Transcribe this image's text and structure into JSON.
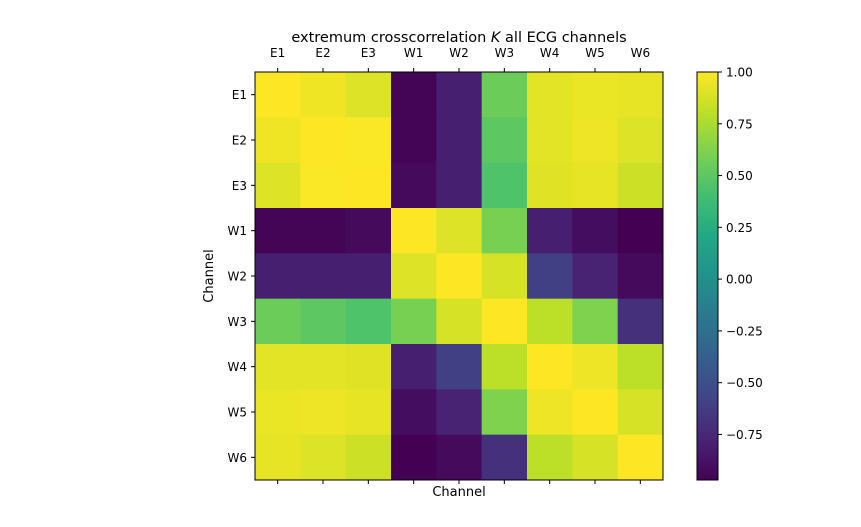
{
  "chart_data": {
    "type": "heatmap",
    "title": "extremum crosscorrelation K all ECG channels",
    "title_parts": {
      "before": "extremum crosscorrelation ",
      "italic": "K",
      "after": " all ECG channels"
    },
    "xlabel": "Channel",
    "ylabel": "Channel",
    "x_categories": [
      "E1",
      "E2",
      "E3",
      "W1",
      "W2",
      "W3",
      "W4",
      "W5",
      "W6"
    ],
    "y_categories": [
      "E1",
      "E2",
      "E3",
      "W1",
      "W2",
      "W3",
      "W4",
      "W5",
      "W6"
    ],
    "x_ticks_position": "top",
    "values": [
      [
        1.0,
        0.96,
        0.9,
        -0.95,
        -0.8,
        0.55,
        0.92,
        0.94,
        0.93
      ],
      [
        0.96,
        1.0,
        0.99,
        -0.95,
        -0.8,
        0.5,
        0.92,
        0.95,
        0.9
      ],
      [
        0.9,
        0.99,
        1.0,
        -0.92,
        -0.8,
        0.45,
        0.91,
        0.93,
        0.85
      ],
      [
        -0.95,
        -0.95,
        -0.92,
        1.0,
        0.9,
        0.6,
        -0.8,
        -0.9,
        -0.98
      ],
      [
        -0.8,
        -0.8,
        -0.8,
        0.9,
        1.0,
        0.88,
        -0.6,
        -0.78,
        -0.92
      ],
      [
        0.55,
        0.5,
        0.45,
        0.6,
        0.88,
        1.0,
        0.8,
        0.62,
        -0.7
      ],
      [
        0.92,
        0.92,
        0.91,
        -0.8,
        -0.6,
        0.8,
        1.0,
        0.95,
        0.8
      ],
      [
        0.94,
        0.95,
        0.93,
        -0.9,
        -0.78,
        0.62,
        0.95,
        1.0,
        0.88
      ],
      [
        0.93,
        0.9,
        0.85,
        -0.98,
        -0.92,
        -0.7,
        0.8,
        0.88,
        1.0
      ]
    ],
    "colorbar": {
      "colormap": "viridis",
      "range": [
        -0.97,
        1.0
      ],
      "tick_values": [
        1.0,
        0.75,
        0.5,
        0.25,
        0.0,
        -0.25,
        -0.5,
        -0.75
      ],
      "tick_labels": [
        "1.00",
        "0.75",
        "0.50",
        "0.25",
        "0.00",
        "−0.25",
        "−0.50",
        "−0.75"
      ],
      "position": "right"
    },
    "grid": false
  }
}
